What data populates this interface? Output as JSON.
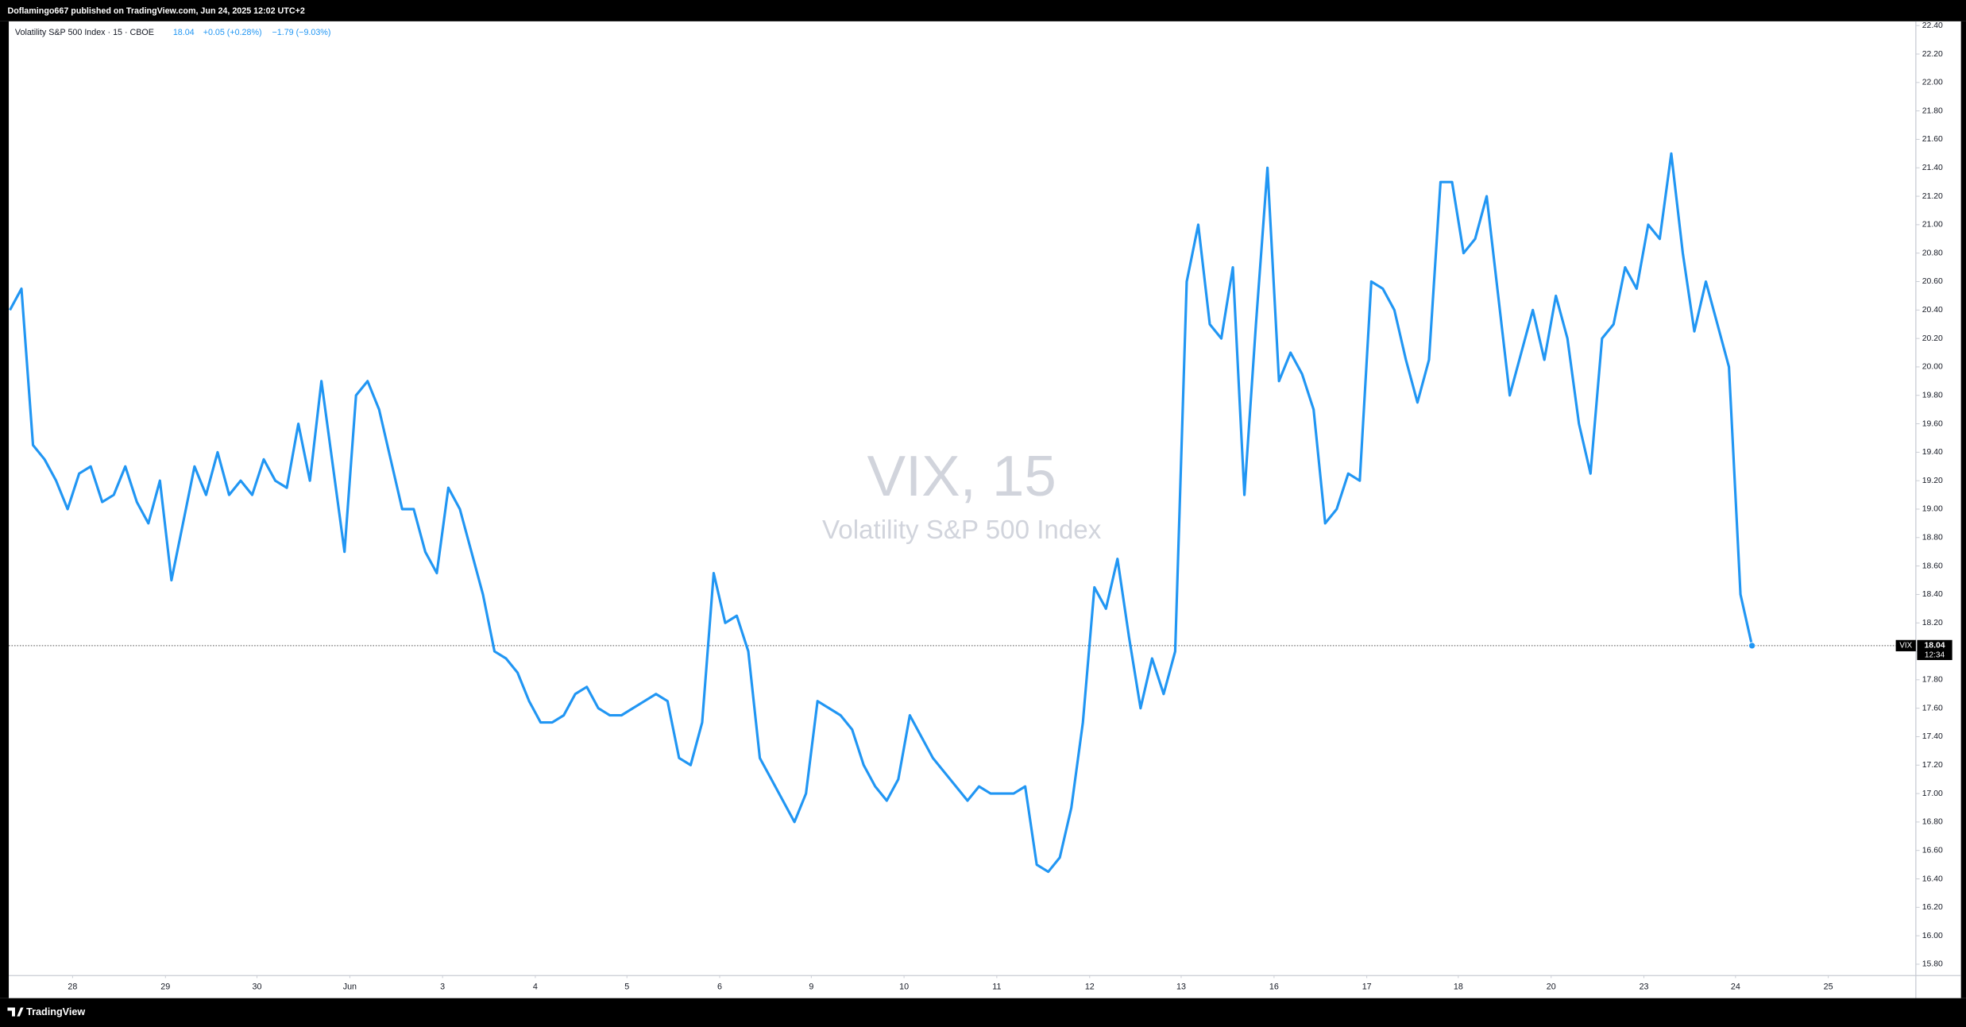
{
  "header": {
    "text": "Doflamingo667 published on TradingView.com, Jun 24, 2025 12:02 UTC+2"
  },
  "footer": {
    "brand": "TradingView"
  },
  "chart_data": {
    "type": "line",
    "title": "Volatility S&P 500 Index · 15 · CBOE",
    "legend_values": [
      "+0.05 (+0.28%)",
      "−1.79 (−9.03%)"
    ],
    "watermark": [
      "VIX, 15",
      "Volatility S&P 500 Index"
    ],
    "price_line": {
      "name": "VIX",
      "value": 18.04,
      "time": "12:34"
    },
    "grid": false,
    "series": [
      {
        "name": "VIX",
        "color": "#2196f3",
        "values": [
          20.4,
          20.55,
          19.45,
          19.35,
          19.2,
          19.0,
          19.25,
          19.3,
          19.05,
          19.1,
          19.3,
          19.05,
          18.9,
          19.2,
          18.5,
          18.9,
          19.3,
          19.1,
          19.4,
          19.1,
          19.2,
          19.1,
          19.35,
          19.2,
          19.15,
          19.6,
          19.2,
          19.9,
          19.3,
          18.7,
          19.8,
          19.9,
          19.7,
          19.35,
          19.0,
          19.0,
          18.7,
          18.55,
          19.15,
          19.0,
          18.7,
          18.4,
          18.0,
          17.95,
          17.85,
          17.65,
          17.5,
          17.5,
          17.55,
          17.7,
          17.75,
          17.6,
          17.55,
          17.55,
          17.6,
          17.65,
          17.7,
          17.65,
          17.25,
          17.2,
          17.5,
          18.55,
          18.2,
          18.25,
          18.0,
          17.25,
          17.1,
          16.95,
          16.8,
          17.0,
          17.65,
          17.6,
          17.55,
          17.45,
          17.2,
          17.05,
          16.95,
          17.1,
          17.55,
          17.4,
          17.25,
          17.15,
          17.05,
          16.95,
          17.05,
          17.0,
          17.0,
          17.0,
          17.05,
          16.5,
          16.45,
          16.55,
          16.9,
          17.5,
          18.45,
          18.3,
          18.65,
          18.1,
          17.6,
          17.95,
          17.7,
          18.0,
          20.6,
          21.0,
          20.3,
          20.2,
          20.7,
          19.1,
          20.3,
          21.4,
          19.9,
          20.1,
          19.95,
          19.7,
          18.9,
          19.0,
          19.25,
          19.2,
          20.6,
          20.55,
          20.4,
          20.05,
          19.75,
          20.05,
          21.3,
          21.3,
          20.8,
          20.9,
          21.2,
          20.5,
          19.8,
          20.1,
          20.4,
          20.05,
          20.5,
          20.2,
          19.6,
          19.25,
          20.2,
          20.3,
          20.7,
          20.55,
          21.0,
          20.9,
          21.5,
          20.8,
          20.25,
          20.6,
          20.3,
          20.0,
          18.4,
          18.04
        ]
      }
    ],
    "xlim": [
      -0.1,
      165.2
    ],
    "xticks": [
      {
        "value": 5.43,
        "label": "28"
      },
      {
        "value": 13.48,
        "label": "29"
      },
      {
        "value": 21.41,
        "label": "30"
      },
      {
        "value": 29.46,
        "label": "Jun"
      },
      {
        "value": 37.5,
        "label": "3"
      },
      {
        "value": 45.54,
        "label": "4"
      },
      {
        "value": 53.48,
        "label": "5"
      },
      {
        "value": 61.52,
        "label": "6"
      },
      {
        "value": 69.46,
        "label": "9"
      },
      {
        "value": 77.5,
        "label": "10"
      },
      {
        "value": 85.54,
        "label": "11"
      },
      {
        "value": 93.59,
        "label": "12"
      },
      {
        "value": 101.52,
        "label": "13"
      },
      {
        "value": 109.57,
        "label": "16"
      },
      {
        "value": 117.61,
        "label": "17"
      },
      {
        "value": 125.54,
        "label": "18"
      },
      {
        "value": 133.59,
        "label": "20"
      },
      {
        "value": 141.63,
        "label": "23"
      },
      {
        "value": 149.57,
        "label": "24"
      },
      {
        "value": 157.61,
        "label": "25"
      }
    ],
    "ylim": [
      15.72,
      22.43
    ],
    "yticks": [
      {
        "value": 15.8,
        "label": "15.80"
      },
      {
        "value": 16.0,
        "label": "16.00"
      },
      {
        "value": 16.2,
        "label": "16.20"
      },
      {
        "value": 16.4,
        "label": "16.40"
      },
      {
        "value": 16.6,
        "label": "16.60"
      },
      {
        "value": 16.8,
        "label": "16.80"
      },
      {
        "value": 17.0,
        "label": "17.00"
      },
      {
        "value": 17.2,
        "label": "17.20"
      },
      {
        "value": 17.4,
        "label": "17.40"
      },
      {
        "value": 17.6,
        "label": "17.60"
      },
      {
        "value": 17.8,
        "label": "17.80"
      },
      {
        "value": 18.0,
        "label": "18.00"
      },
      {
        "value": 18.2,
        "label": "18.20"
      },
      {
        "value": 18.4,
        "label": "18.40"
      },
      {
        "value": 18.6,
        "label": "18.60"
      },
      {
        "value": 18.8,
        "label": "18.80"
      },
      {
        "value": 19.0,
        "label": "19.00"
      },
      {
        "value": 19.2,
        "label": "19.20"
      },
      {
        "value": 19.4,
        "label": "19.40"
      },
      {
        "value": 19.6,
        "label": "19.60"
      },
      {
        "value": 19.8,
        "label": "19.80"
      },
      {
        "value": 20.0,
        "label": "20.00"
      },
      {
        "value": 20.2,
        "label": "20.20"
      },
      {
        "value": 20.4,
        "label": "20.40"
      },
      {
        "value": 20.6,
        "label": "20.60"
      },
      {
        "value": 20.8,
        "label": "20.80"
      },
      {
        "value": 21.0,
        "label": "21.00"
      },
      {
        "value": 21.2,
        "label": "21.20"
      },
      {
        "value": 21.4,
        "label": "21.40"
      },
      {
        "value": 21.6,
        "label": "21.60"
      },
      {
        "value": 21.8,
        "label": "21.80"
      },
      {
        "value": 22.0,
        "label": "22.00"
      },
      {
        "value": 22.2,
        "label": "22.20"
      },
      {
        "value": 22.4,
        "label": "22.40"
      }
    ]
  }
}
